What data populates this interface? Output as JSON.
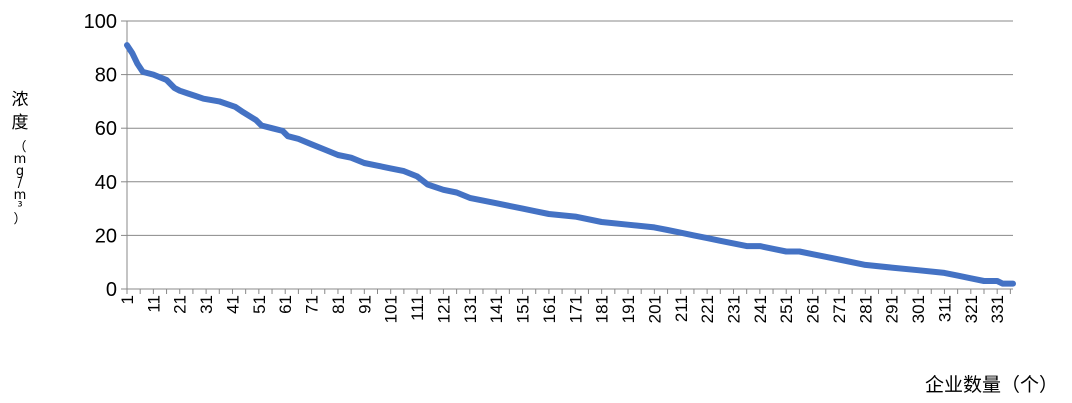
{
  "chart_data": {
    "type": "line",
    "title": "",
    "ylabel": "浓度（mg/m³）",
    "xlabel": "企业数量（个）",
    "ylim": [
      0,
      100
    ],
    "yticks": [
      0,
      20,
      40,
      60,
      80,
      100
    ],
    "xlim": [
      1,
      337
    ],
    "xticks": [
      1,
      11,
      21,
      31,
      41,
      51,
      61,
      71,
      81,
      91,
      101,
      111,
      121,
      131,
      141,
      151,
      161,
      171,
      181,
      191,
      201,
      211,
      221,
      231,
      241,
      251,
      261,
      271,
      281,
      291,
      301,
      311,
      321,
      331
    ],
    "grid": "horizontal",
    "legend": "none",
    "line_color": "#4472C4",
    "series": [
      {
        "x": [
          1,
          3,
          5,
          7,
          11,
          16,
          19,
          21,
          24,
          27,
          30,
          36,
          42,
          45,
          50,
          52,
          56,
          60,
          62,
          66,
          71,
          76,
          81,
          86,
          91,
          96,
          101,
          106,
          111,
          115,
          121,
          126,
          131,
          136,
          141,
          146,
          151,
          156,
          161,
          171,
          181,
          191,
          201,
          206,
          211,
          216,
          221,
          226,
          231,
          236,
          241,
          246,
          251,
          256,
          261,
          266,
          271,
          281,
          291,
          301,
          311,
          316,
          321,
          326,
          331,
          333,
          337
        ],
        "y": [
          91,
          88,
          84,
          81,
          80,
          78,
          75,
          74,
          73,
          72,
          71,
          70,
          68,
          66,
          63,
          61,
          60,
          59,
          57,
          56,
          54,
          52,
          50,
          49,
          47,
          46,
          45,
          44,
          42,
          39,
          37,
          36,
          34,
          33,
          32,
          31,
          30,
          29,
          28,
          27,
          25,
          24,
          23,
          22,
          21,
          20,
          19,
          18,
          17,
          16,
          16,
          15,
          14,
          14,
          13,
          12,
          11,
          9,
          8,
          7,
          6,
          5,
          4,
          3,
          3,
          2,
          2
        ]
      }
    ]
  }
}
